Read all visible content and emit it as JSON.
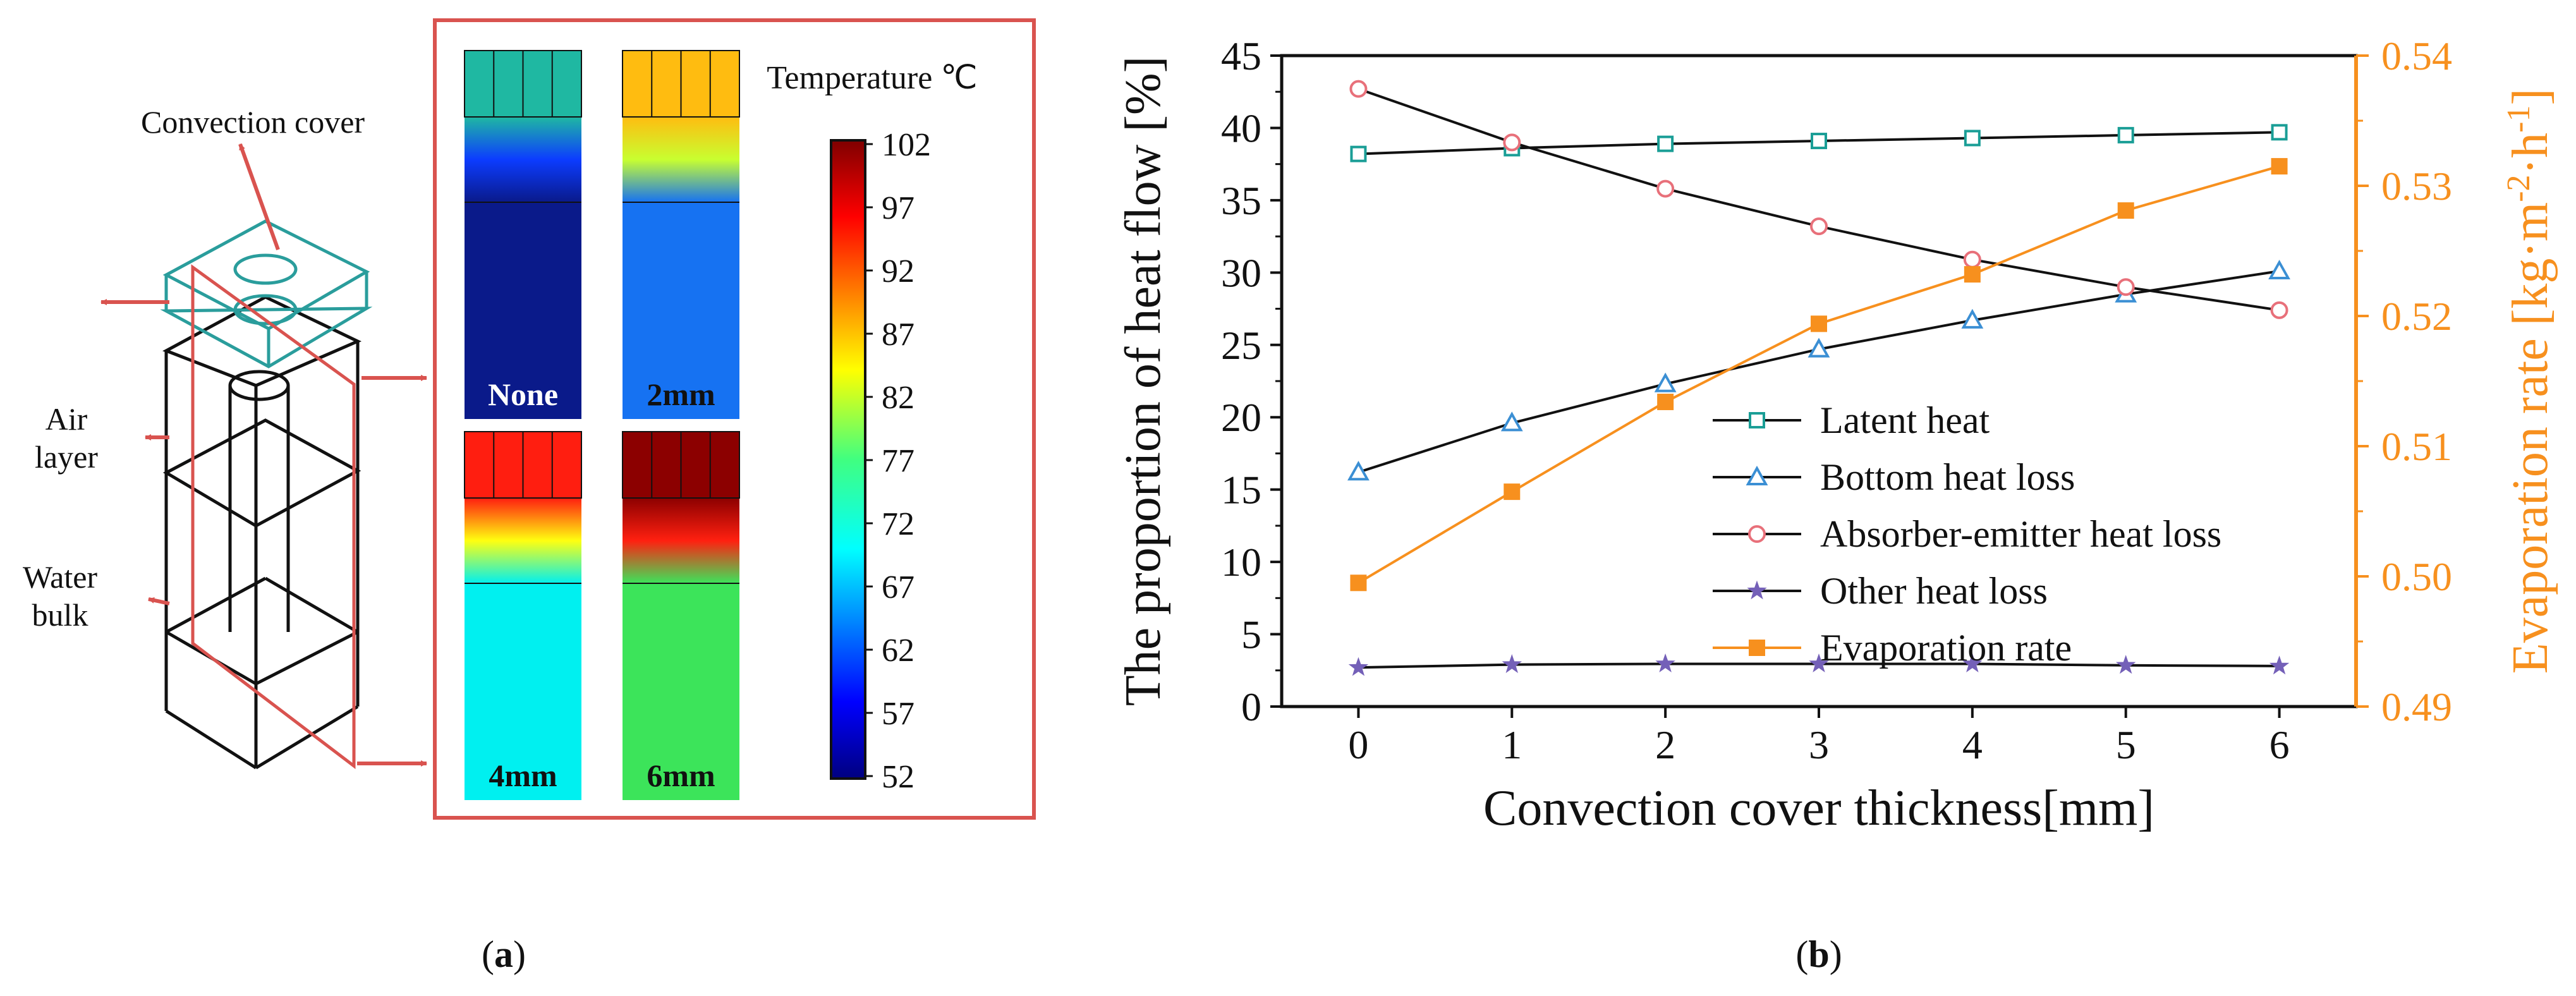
{
  "panel_a": {
    "caption": "a",
    "labels": {
      "convection_cover": "Convection cover",
      "air_layer_line1": "Air",
      "air_layer_line2": "layer",
      "water_bulk_line1": "Water",
      "water_bulk_line2": "bulk"
    },
    "thumbnails": [
      {
        "label": "None",
        "cover_color": "#1fb8a2",
        "body_color": "#0a1a8a",
        "gradient": [
          "#1fb8a2",
          "#0c3cff",
          "#0a1a8a"
        ]
      },
      {
        "label": "2mm",
        "cover_color": "#ffbc10",
        "body_color": "#1672f2",
        "gradient": [
          "#ffbc10",
          "#c8ff30",
          "#1672f2"
        ]
      },
      {
        "label": "4mm",
        "cover_color": "#ff1e10",
        "body_color": "#00f0f0",
        "gradient": [
          "#ff1e10",
          "#ffff10",
          "#00f0f0"
        ]
      },
      {
        "label": "6mm",
        "cover_color": "#8c0000",
        "body_color": "#3ce45a",
        "gradient": [
          "#8c0000",
          "#ff2010",
          "#3ce45a"
        ]
      }
    ],
    "colorbar": {
      "title": "Temperature ℃",
      "ticks": [
        "102",
        "97",
        "92",
        "87",
        "82",
        "77",
        "72",
        "67",
        "62",
        "57",
        "52"
      ]
    },
    "accent_color": "#d9534f"
  },
  "panel_b": {
    "caption": "b"
  },
  "chart_data": {
    "type": "line",
    "xlabel": "Convection cover thickness[mm]",
    "ylabel": "The proportion of heat flow [%]",
    "y2label_parts": [
      "Evaporation rate [kg·m",
      "-2",
      "·h",
      "-1",
      "]"
    ],
    "x": [
      0,
      1,
      2,
      3,
      4,
      5,
      6
    ],
    "xlim": [
      -0.5,
      6.5
    ],
    "ylim": [
      0,
      45
    ],
    "y2lim": [
      0.49,
      0.54
    ],
    "xticks": [
      "0",
      "1",
      "2",
      "3",
      "4",
      "5",
      "6"
    ],
    "yticks": [
      "0",
      "5",
      "10",
      "15",
      "20",
      "25",
      "30",
      "35",
      "40",
      "45"
    ],
    "y2ticks": [
      "0.49",
      "0.50",
      "0.51",
      "0.52",
      "0.53",
      "0.54"
    ],
    "legend_position": "center",
    "series": [
      {
        "name": "Latent heat",
        "axis": "left",
        "marker": "square-open",
        "color": "#1a9e96",
        "values": [
          38.2,
          38.6,
          38.9,
          39.1,
          39.3,
          39.5,
          39.7
        ]
      },
      {
        "name": "Bottom heat loss",
        "axis": "left",
        "marker": "triangle-open",
        "color": "#3b8fd4",
        "values": [
          16.2,
          19.6,
          22.3,
          24.7,
          26.7,
          28.5,
          30.1
        ]
      },
      {
        "name": "Absorber-emitter heat loss",
        "axis": "left",
        "marker": "circle-open",
        "color": "#e8707a",
        "values": [
          42.7,
          39.0,
          35.8,
          33.2,
          30.9,
          29.0,
          27.4
        ]
      },
      {
        "name": "Other heat loss",
        "axis": "left",
        "marker": "star",
        "color": "#7460b8",
        "values": [
          2.7,
          2.9,
          2.95,
          2.95,
          2.95,
          2.85,
          2.8
        ]
      },
      {
        "name": "Evaporation rate",
        "axis": "right",
        "marker": "square-filled",
        "color": "#f7901e",
        "values": [
          0.4995,
          0.5065,
          0.5134,
          0.5194,
          0.5232,
          0.5281,
          0.5315
        ]
      }
    ]
  }
}
